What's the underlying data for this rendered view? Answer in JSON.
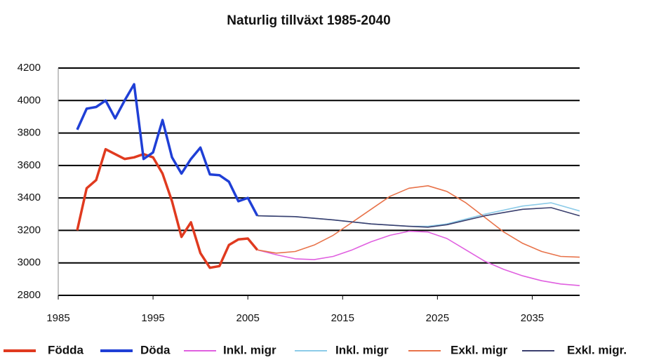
{
  "chart_data": {
    "type": "line",
    "title": "Naturlig tillväxt 1985-2040",
    "xlim": [
      1985,
      2040
    ],
    "xticks": [
      1985,
      1995,
      2005,
      2015,
      2025,
      2035
    ],
    "ylim": [
      2800,
      4200
    ],
    "yticks": [
      2800,
      3000,
      3200,
      3400,
      3600,
      3800,
      4000,
      4200
    ],
    "grid": true,
    "legend": "bottom",
    "series": [
      {
        "name": "Födda",
        "color": "#e03a1f",
        "x": [
          1987,
          1988,
          1989,
          1990,
          1991,
          1992,
          1993,
          1994,
          1995,
          1996,
          1997,
          1998,
          1999,
          2000,
          2001,
          2002,
          2003,
          2004,
          2005,
          2006
        ],
        "values": [
          3200,
          3460,
          3510,
          3700,
          3670,
          3640,
          3650,
          3670,
          3650,
          3550,
          3380,
          3160,
          3250,
          3060,
          2970,
          2980,
          3110,
          3145,
          3150,
          3080
        ]
      },
      {
        "name": "Döda",
        "color": "#1f3fd6",
        "x": [
          1987,
          1988,
          1989,
          1990,
          1991,
          1992,
          1993,
          1994,
          1995,
          1996,
          1997,
          1998,
          1999,
          2000,
          2001,
          2002,
          2003,
          2004,
          2005,
          2006
        ],
        "values": [
          3820,
          3950,
          3960,
          4000,
          3890,
          4000,
          4100,
          3640,
          3680,
          3880,
          3650,
          3550,
          3640,
          3710,
          3545,
          3540,
          3500,
          3380,
          3400,
          3290
        ]
      },
      {
        "name": "Inkl. migr",
        "color": "#e060e0",
        "x": [
          2006,
          2008,
          2010,
          2012,
          2014,
          2016,
          2018,
          2020,
          2022,
          2024,
          2026,
          2028,
          2030,
          2032,
          2034,
          2036,
          2038,
          2040
        ],
        "values": [
          3080,
          3050,
          3025,
          3020,
          3040,
          3080,
          3130,
          3170,
          3195,
          3190,
          3150,
          3080,
          3010,
          2960,
          2920,
          2890,
          2870,
          2860
        ]
      },
      {
        "name": "Inkl. migr",
        "color": "#8ccbe8",
        "x": [
          2006,
          2010,
          2014,
          2018,
          2022,
          2024,
          2026,
          2030,
          2034,
          2037,
          2040
        ],
        "values": [
          3290,
          3285,
          3265,
          3240,
          3225,
          3225,
          3240,
          3300,
          3350,
          3370,
          3320
        ]
      },
      {
        "name": "Exkl. migr",
        "color": "#e8734a",
        "x": [
          2006,
          2008,
          2010,
          2012,
          2014,
          2016,
          2018,
          2020,
          2022,
          2024,
          2026,
          2028,
          2030,
          2032,
          2034,
          2036,
          2038,
          2040
        ],
        "values": [
          3080,
          3060,
          3070,
          3110,
          3170,
          3250,
          3330,
          3410,
          3460,
          3475,
          3440,
          3370,
          3280,
          3190,
          3120,
          3070,
          3040,
          3035
        ]
      },
      {
        "name": "Exkl. migr.",
        "color": "#3a3f6e",
        "x": [
          2006,
          2010,
          2014,
          2018,
          2022,
          2024,
          2026,
          2030,
          2034,
          2037,
          2040
        ],
        "values": [
          3290,
          3285,
          3265,
          3240,
          3225,
          3220,
          3235,
          3290,
          3330,
          3340,
          3290
        ]
      }
    ]
  }
}
